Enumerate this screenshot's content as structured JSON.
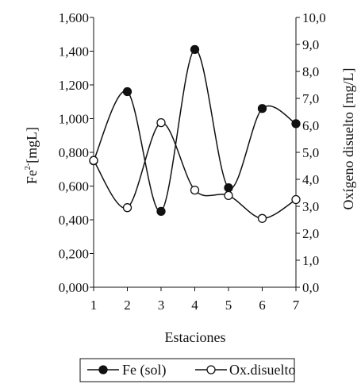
{
  "chart_data": {
    "type": "line",
    "x": [
      1,
      2,
      3,
      4,
      5,
      6,
      7
    ],
    "xlabel": "Estaciones",
    "ylabel_left_main": "Fe",
    "ylabel_left_sup": "2-",
    "ylabel_left_unit": "[mgL]",
    "ylabel_right": "Oxígeno disuelto [mg/L]",
    "y_left_lim": [
      0,
      1.6
    ],
    "y_right_lim": [
      0,
      10
    ],
    "y_left_ticks": [
      "0,000",
      "0,200",
      "0,400",
      "0,600",
      "0,800",
      "1,000",
      "1,200",
      "1,400",
      "1,600"
    ],
    "y_right_ticks": [
      "0,0",
      "1,0",
      "2,0",
      "3,0",
      "4,0",
      "5,0",
      "6,0",
      "7,0",
      "8,0",
      "9,0",
      "10,0"
    ],
    "x_ticks": [
      "1",
      "2",
      "3",
      "4",
      "5",
      "6",
      "7"
    ],
    "grid": false,
    "legend_position": "bottom",
    "series": [
      {
        "name": "Fe (sol)",
        "axis": "left",
        "marker": "filled-circle",
        "values": [
          0.75,
          1.16,
          0.45,
          1.41,
          0.59,
          1.06,
          0.97
        ]
      },
      {
        "name": "Ox.disuelto",
        "axis": "right",
        "marker": "open-circle",
        "values": [
          4.7,
          2.95,
          6.1,
          3.6,
          3.4,
          2.55,
          3.25
        ]
      }
    ],
    "colors": {
      "line": "#111111",
      "marker_fill": "#111111",
      "open_marker_fill": "#ffffff"
    }
  }
}
